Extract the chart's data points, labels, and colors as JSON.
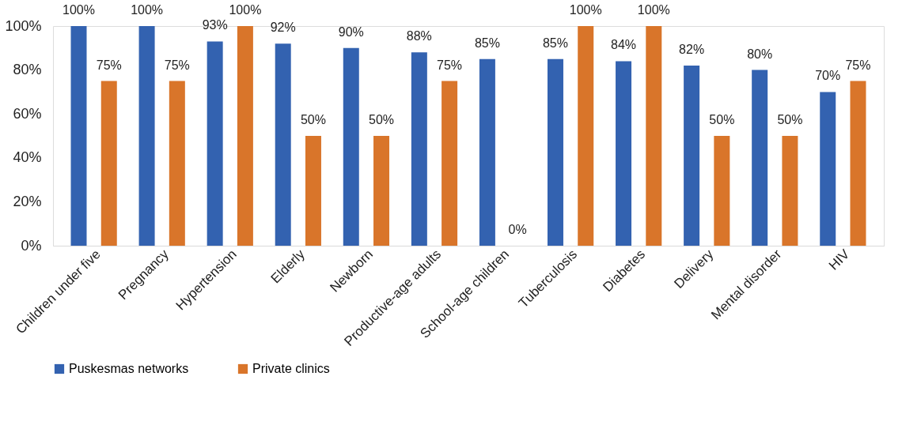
{
  "chart_data": {
    "type": "bar",
    "categories": [
      "Children under five",
      "Pregnancy",
      "Hypertension",
      "Elderly",
      "Newborn",
      "Productive-age adults",
      "School-age children",
      "Tuberculosis",
      "Diabetes",
      "Delivery",
      "Mental disorder",
      "HIV"
    ],
    "series": [
      {
        "name": "Puskesmas networks",
        "color": "#3362b0",
        "values": [
          100,
          100,
          93,
          92,
          90,
          88,
          85,
          85,
          84,
          82,
          80,
          70
        ],
        "value_labels": [
          "100%",
          "100%",
          "93%",
          "92%",
          "90%",
          "88%",
          "85%",
          "85%",
          "84%",
          "82%",
          "80%",
          "70%"
        ]
      },
      {
        "name": "Private clinics",
        "color": "#d9752a",
        "values": [
          75,
          75,
          100,
          50,
          50,
          75,
          0,
          100,
          100,
          50,
          50,
          75
        ],
        "value_labels": [
          "75%",
          "75%",
          "100%",
          "50%",
          "50%",
          "75%",
          "0%",
          "100%",
          "100%",
          "50%",
          "50%",
          "75%"
        ]
      }
    ],
    "ylim": [
      0,
      100
    ],
    "yticks": [
      {
        "value": 0,
        "label": "0%"
      },
      {
        "value": 20,
        "label": "20%"
      },
      {
        "value": 40,
        "label": "40%"
      },
      {
        "value": 60,
        "label": "60%"
      },
      {
        "value": 80,
        "label": "80%"
      },
      {
        "value": 100,
        "label": "100%"
      }
    ],
    "grid": false,
    "legend": "bottom"
  }
}
